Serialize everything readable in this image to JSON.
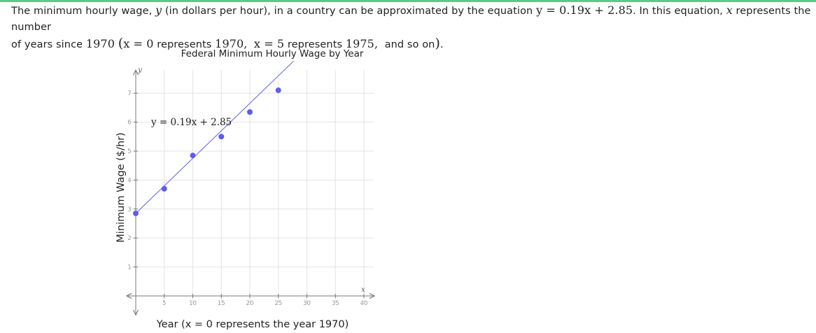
{
  "colors": {
    "top_rule": "#5cc98a",
    "point": "#5b5fee",
    "line": "#7478f2",
    "grid": "#e3e3e3",
    "axis": "#777777",
    "tick_text": "#999999",
    "text": "#222222"
  },
  "problem": {
    "line1_part1": "The minimum hourly wage, ",
    "var_y": "y",
    "line1_part2": " (in dollars per hour), in a country can be approximated by the equation ",
    "equation": "y = 0.19x + 2.85",
    "line1_part3": ". In this equation, ",
    "var_x": "x",
    "line1_part4": " represents the number",
    "line2_part1": "of years since ",
    "year_1970": "1970",
    "paren_open": "(",
    "x_eq_0": "x = 0",
    "represents_1": " represents ",
    "year_1970b": "1970,",
    "x_eq_5": "x = 5",
    "represents_2": " represents ",
    "year_1975": "1975,",
    "and_so_on": "and so on",
    "paren_close": ")",
    "period": "."
  },
  "chart_data": {
    "type": "scatter",
    "title": "Federal Minimum Hourly Wage by Year",
    "xlabel": "Year (x = 0 represents the year 1970)",
    "ylabel": "Minimum Wage ($/hr)",
    "x_axis_letter": "x",
    "y_axis_letter": "y",
    "xlim": [
      -1,
      41
    ],
    "ylim": [
      -0.25,
      7.8
    ],
    "x_ticks": [
      5,
      10,
      15,
      20,
      25,
      30,
      35,
      40
    ],
    "y_ticks": [
      1,
      2,
      3,
      4,
      5,
      6,
      7
    ],
    "grid": true,
    "points": [
      {
        "x": 0,
        "y": 2.85
      },
      {
        "x": 5,
        "y": 3.7
      },
      {
        "x": 10,
        "y": 4.85
      },
      {
        "x": 15,
        "y": 5.5
      },
      {
        "x": 20,
        "y": 6.35
      },
      {
        "x": 25,
        "y": 7.1
      }
    ],
    "trend_line": {
      "slope": 0.19,
      "intercept": 2.85,
      "label": "y = 0.19x + 2.85",
      "x_range": [
        0,
        27.7
      ]
    }
  }
}
